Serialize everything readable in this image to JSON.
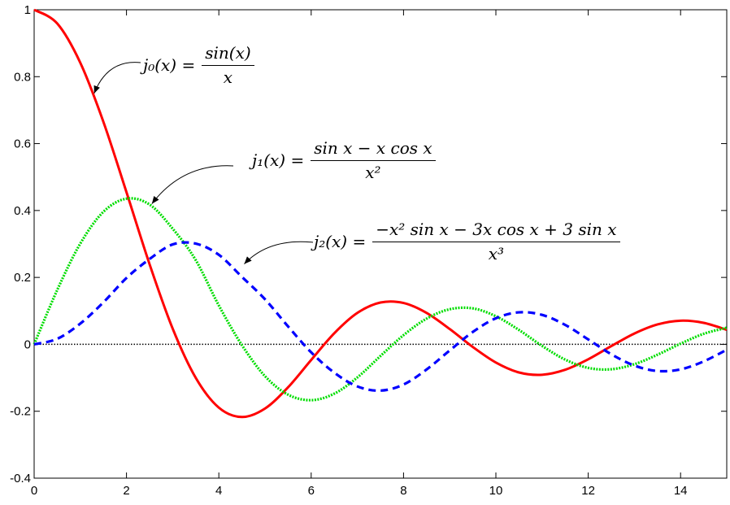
{
  "chart_data": {
    "type": "line",
    "title": "",
    "xlabel": "",
    "ylabel": "",
    "xlim": [
      0,
      15
    ],
    "ylim": [
      -0.4,
      1
    ],
    "xticks": [
      0,
      2,
      4,
      6,
      8,
      10,
      12,
      14
    ],
    "yticks": [
      -0.4,
      -0.2,
      0,
      0.2,
      0.4,
      0.6,
      0.8,
      1
    ],
    "x_tick_labels": [
      "0",
      "2",
      "4",
      "6",
      "8",
      "10",
      "12",
      "14"
    ],
    "y_tick_labels": [
      "-0.4",
      "-0.2",
      "0",
      "0.2",
      "0.4",
      "0.6",
      "0.8",
      "1"
    ],
    "grid": false,
    "reference_lines": [
      {
        "y": 0,
        "color": "#000000",
        "style": "dotted"
      }
    ],
    "x": [
      0,
      0.5,
      1,
      1.5,
      2,
      2.5,
      3,
      3.5,
      4,
      4.5,
      5,
      5.5,
      6,
      6.5,
      7,
      7.5,
      8,
      8.5,
      9,
      9.5,
      10,
      10.5,
      11,
      11.5,
      12,
      12.5,
      13,
      13.5,
      14,
      14.5,
      15
    ],
    "series": [
      {
        "color": "#ff0000",
        "style": "solid",
        "values": [
          1,
          0.9589,
          0.8415,
          0.665,
          0.4546,
          0.2394,
          0.047,
          -0.1002,
          -0.1892,
          -0.2172,
          -0.1918,
          -0.1283,
          -0.0466,
          0.0331,
          0.0939,
          0.125,
          0.1237,
          0.0939,
          0.0458,
          -0.0079,
          -0.0544,
          -0.084,
          -0.0909,
          -0.076,
          -0.0447,
          -0.0053,
          0.0323,
          0.0594,
          0.0707,
          0.0642,
          0.0434
        ]
      },
      {
        "color": "#00dd00",
        "style": "dotted",
        "values": [
          0,
          0.1625,
          0.3012,
          0.3961,
          0.4354,
          0.4178,
          0.3457,
          0.2516,
          0.1161,
          -0.0023,
          -0.0951,
          -0.1504,
          -0.1668,
          -0.1475,
          -0.099,
          -0.0349,
          0.0274,
          0.0768,
          0.1049,
          0.1075,
          0.084,
          0.043,
          -0.0046,
          -0.0456,
          -0.0704,
          -0.0745,
          -0.0594,
          -0.031,
          0.002,
          0.0315,
          0.0496
        ]
      },
      {
        "color": "#0000ff",
        "style": "dashed",
        "values": [
          0,
          0.0164,
          0.062,
          0.1255,
          0.1984,
          0.255,
          0.2986,
          0.3011,
          0.2676,
          0.2016,
          0.1347,
          0.0534,
          -0.024,
          -0.0847,
          -0.1258,
          -0.1383,
          -0.1202,
          -0.0751,
          -0.0183,
          0.037,
          0.0779,
          0.0957,
          0.0881,
          0.0582,
          0.0147,
          -0.0297,
          -0.0635,
          -0.0797,
          -0.0749,
          -0.051,
          -0.0161
        ]
      }
    ]
  },
  "annotations": [
    {
      "lhs": "j₀(x) =",
      "num": "sin(x)",
      "den": "x",
      "target": [
        1.3,
        0.75
      ]
    },
    {
      "lhs": "j₁(x) =",
      "num": "sin x − x cos x",
      "den": "x²",
      "target": [
        2.55,
        0.42
      ]
    },
    {
      "lhs": "j₂(x) =",
      "num": "−x² sin x − 3x cos x + 3 sin x",
      "den": "x³",
      "target": [
        4.55,
        0.24
      ]
    }
  ]
}
